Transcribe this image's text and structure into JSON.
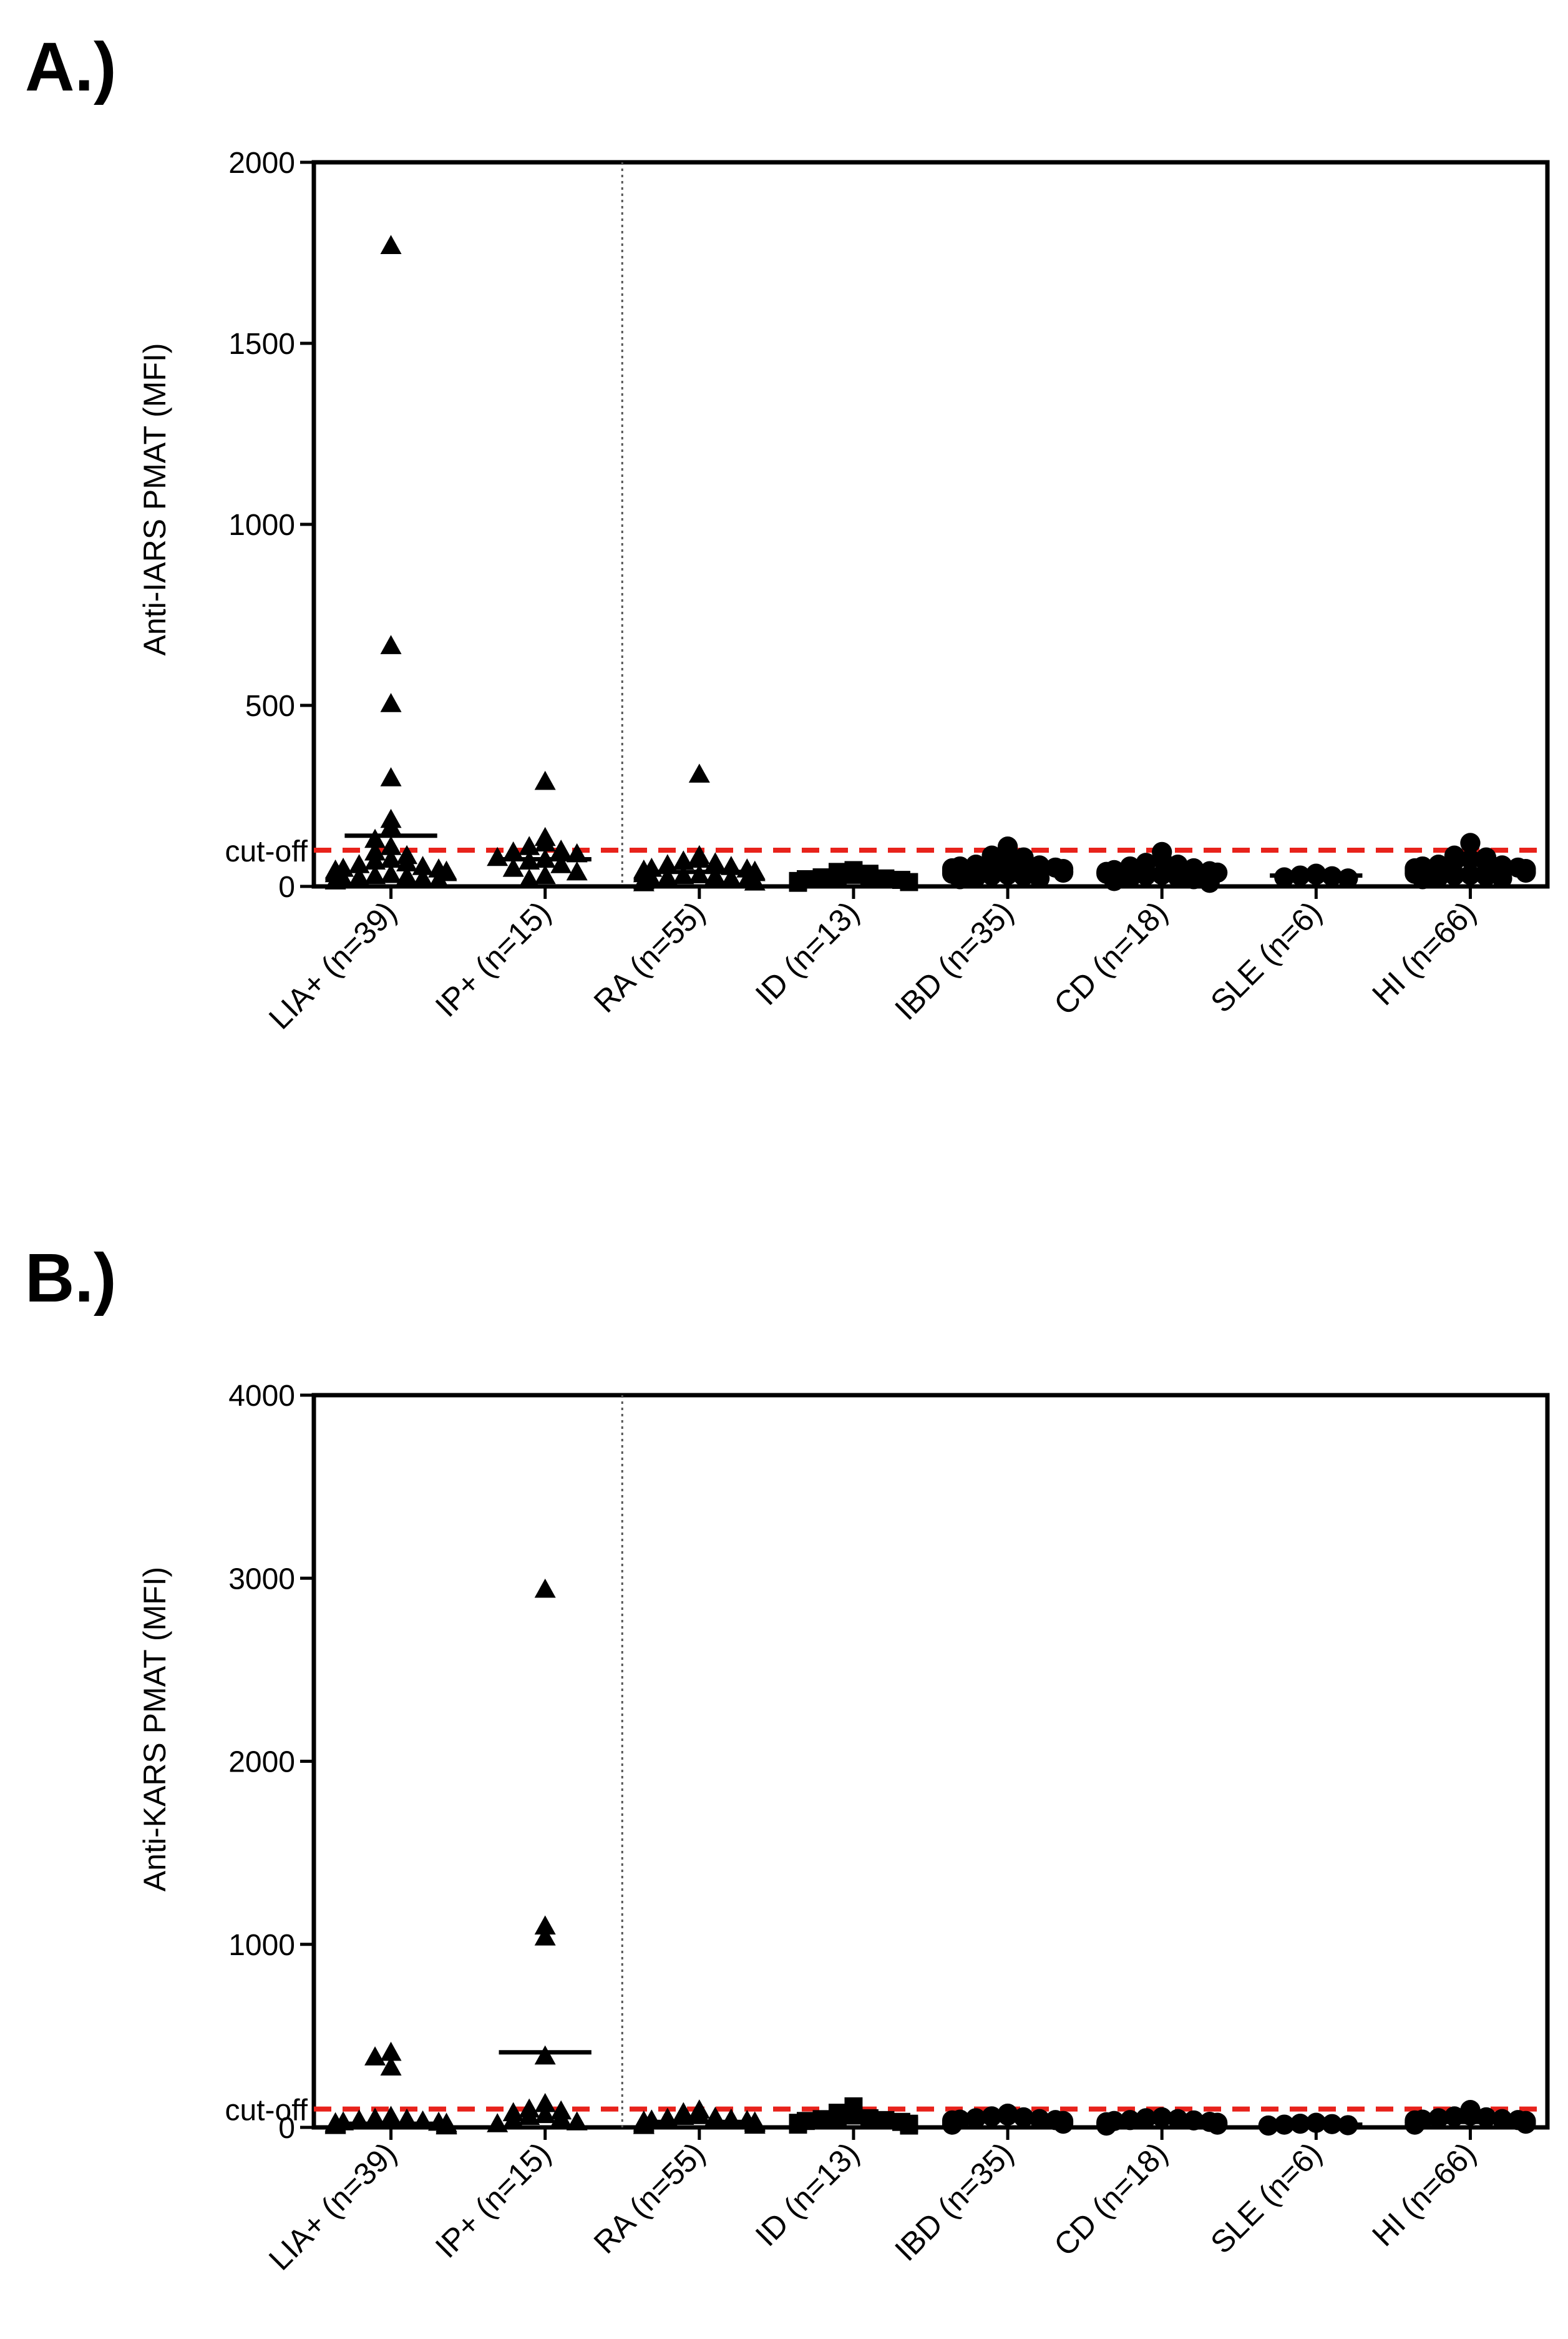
{
  "chart_data": [
    {
      "panel_label": "A.)",
      "type": "scatter",
      "ylabel": "Anti-IARS PMAT (MFI)",
      "ylim": [
        0,
        2000
      ],
      "yticks": [
        0,
        500,
        1000,
        1500,
        2000
      ],
      "ytick_labels": [
        "0",
        "500",
        "1000",
        "1500",
        "2000"
      ],
      "cutoff": 100,
      "cutoff_label": "cut-off",
      "separator_after_index": 1,
      "categories": [
        {
          "label": "LIA+ (n=39)",
          "marker": "triangle",
          "median": 140,
          "values": [
            1770,
            665,
            505,
            300,
            185,
            165,
            130,
            110,
            95,
            85,
            75,
            70,
            65,
            60,
            55,
            50,
            48,
            45,
            42,
            40,
            38,
            35,
            33,
            30,
            28,
            25,
            22,
            20,
            18,
            15
          ]
        },
        {
          "label": "IP+ (n=15)",
          "marker": "triangle",
          "median": 75,
          "values": [
            290,
            135,
            120,
            110,
            100,
            95,
            90,
            80,
            75,
            70,
            60,
            50,
            40,
            30,
            20
          ]
        },
        {
          "label": "RA (n=55)",
          "marker": "triangle",
          "median": 40,
          "values": [
            310,
            85,
            75,
            70,
            65,
            60,
            55,
            50,
            48,
            45,
            42,
            40,
            38,
            35,
            32,
            30,
            28,
            25,
            22,
            20,
            18,
            15,
            12,
            10
          ]
        },
        {
          "label": "ID (n=13)",
          "marker": "square",
          "median": 25,
          "values": [
            45,
            40,
            35,
            32,
            30,
            28,
            25,
            22,
            20,
            18,
            15,
            12,
            10
          ]
        },
        {
          "label": "IBD (n=35)",
          "marker": "circle",
          "median": 50,
          "values": [
            110,
            85,
            80,
            75,
            70,
            65,
            60,
            58,
            55,
            52,
            50,
            48,
            45,
            42,
            40,
            38,
            35,
            32,
            30,
            28,
            25,
            22,
            20
          ]
        },
        {
          "label": "CD (n=18)",
          "marker": "circle",
          "median": 40,
          "values": [
            95,
            75,
            65,
            60,
            55,
            50,
            45,
            42,
            40,
            38,
            35,
            32,
            30,
            25,
            22,
            20,
            15,
            10
          ]
        },
        {
          "label": "SLE (n=6)",
          "marker": "circle",
          "median": 30,
          "values": [
            35,
            32,
            30,
            28,
            25,
            22
          ]
        },
        {
          "label": "HI (n=66)",
          "marker": "circle",
          "median": 45,
          "values": [
            120,
            85,
            80,
            75,
            70,
            65,
            60,
            58,
            55,
            52,
            50,
            48,
            45,
            42,
            40,
            38,
            35,
            32,
            30,
            28,
            25,
            22,
            20
          ]
        }
      ]
    },
    {
      "panel_label": "B.)",
      "type": "scatter",
      "ylabel": "Anti-KARS PMAT (MFI)",
      "ylim": [
        0,
        4000
      ],
      "yticks": [
        0,
        1000,
        2000,
        3000,
        4000
      ],
      "ytick_labels": [
        "0",
        "1000",
        "2000",
        "3000",
        "4000"
      ],
      "cutoff": 100,
      "cutoff_label": "cut-off",
      "separator_after_index": 1,
      "categories": [
        {
          "label": "LIA+ (n=39)",
          "marker": "triangle",
          "median": 20,
          "values": [
            410,
            385,
            330,
            60,
            50,
            45,
            40,
            35,
            30,
            28,
            25,
            22,
            20,
            18,
            15,
            12,
            10,
            8
          ]
        },
        {
          "label": "IP+ (n=15)",
          "marker": "triangle",
          "median": 410,
          "values": [
            2940,
            1100,
            1040,
            390,
            130,
            100,
            90,
            80,
            70,
            60,
            50,
            40,
            30,
            20
          ]
        },
        {
          "label": "RA (n=55)",
          "marker": "triangle",
          "median": 30,
          "values": [
            95,
            80,
            70,
            60,
            55,
            50,
            45,
            40,
            38,
            35,
            30,
            28,
            25,
            22,
            20,
            15,
            12,
            10
          ]
        },
        {
          "label": "ID (n=13)",
          "marker": "square",
          "median": 40,
          "values": [
            115,
            80,
            65,
            55,
            50,
            45,
            40,
            35,
            30,
            25,
            20,
            15,
            10
          ]
        },
        {
          "label": "IBD (n=35)",
          "marker": "circle",
          "median": 40,
          "values": [
            75,
            65,
            60,
            55,
            50,
            45,
            42,
            40,
            38,
            35,
            30,
            28,
            25,
            20,
            15
          ]
        },
        {
          "label": "CD (n=18)",
          "marker": "circle",
          "median": 30,
          "values": [
            55,
            50,
            45,
            40,
            38,
            35,
            30,
            28,
            25,
            20,
            15,
            10
          ]
        },
        {
          "label": "SLE (n=6)",
          "marker": "circle",
          "median": 15,
          "values": [
            25,
            20,
            18,
            15,
            12,
            10
          ]
        },
        {
          "label": "HI (n=66)",
          "marker": "circle",
          "median": 30,
          "values": [
            95,
            65,
            60,
            55,
            50,
            45,
            42,
            40,
            38,
            35,
            30,
            28,
            25,
            20,
            15
          ]
        }
      ]
    }
  ],
  "colors": {
    "marker": "#000000",
    "axis": "#000000",
    "cutoff_line": "#e8221b",
    "separator": "#555555",
    "background": "#ffffff"
  }
}
